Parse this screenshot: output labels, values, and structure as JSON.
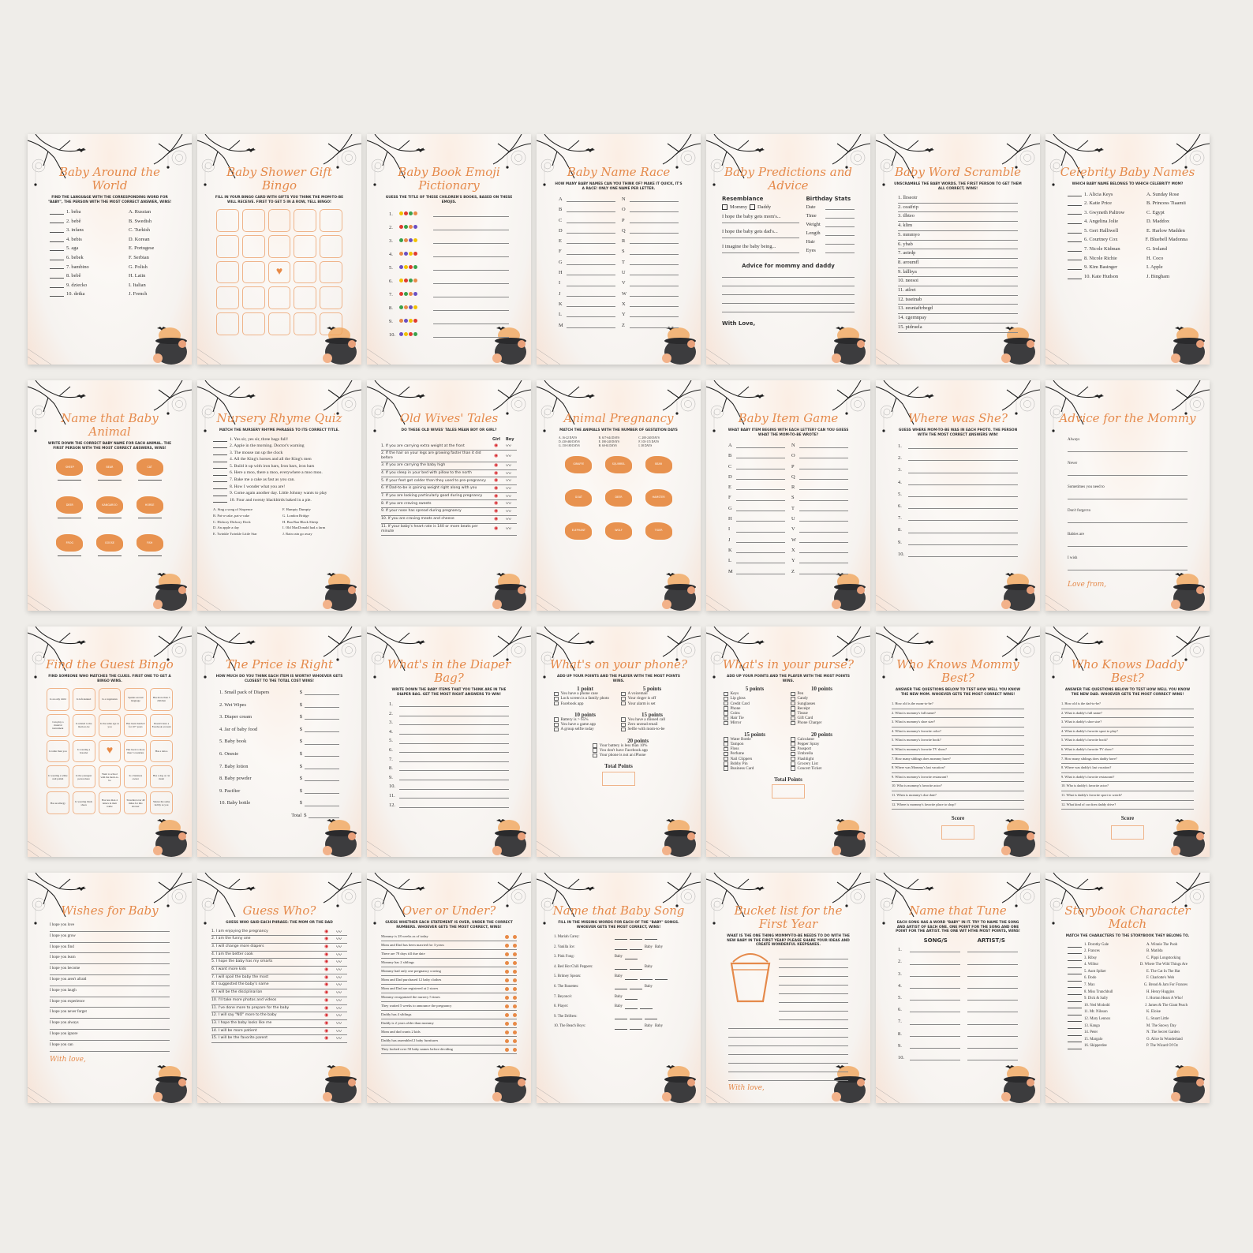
{
  "palette": {
    "accent": "#e58a4b",
    "background": "#efede9",
    "card": "#fbf8f5"
  },
  "cards": [
    {
      "type": "match",
      "title": "Baby Around the World",
      "instr": "Find the language with the corresponding word for \"baby\", the person with the most correct answer, wins!",
      "left": [
        "1. beba",
        "2. bebê",
        "3. infans",
        "4. bebis",
        "5. aga",
        "6. bebek",
        "7. bambino",
        "8. bebê",
        "9. dziecko",
        "10. detka"
      ],
      "right": [
        "A. Russian",
        "B. Swedish",
        "C. Turkish",
        "D. Korean",
        "E. Portugese",
        "F. Serbian",
        "G. Polish",
        "H. Latin",
        "I. Italian",
        "J. French"
      ]
    },
    {
      "type": "bingo",
      "title": "Baby Shower Gift Bingo",
      "instr": "Fill in your bingo card with gifts you think the mom-to-be will receive. First to get 5 in a row, yell bingo!",
      "cells": [
        "",
        "",
        "",
        "",
        "",
        "",
        "",
        "",
        "",
        "",
        "",
        "",
        "heart",
        "",
        "",
        "",
        "",
        "",
        "",
        "",
        "",
        "",
        "",
        "",
        ""
      ]
    },
    {
      "type": "emoji",
      "title": "Baby Book Emoji Pictionary",
      "instr": "Guess the title of these children's books, based on these emojis.",
      "items": [
        "1.",
        "2.",
        "3.",
        "4.",
        "5.",
        "6.",
        "7.",
        "8.",
        "9.",
        "10."
      ]
    },
    {
      "type": "alphabet",
      "title": "Baby Name Race",
      "instr": "How many baby names can you think of? Make it quick, it's a race! Only one name per letter.",
      "left": [
        "A",
        "B",
        "C",
        "D",
        "E",
        "F",
        "G",
        "H",
        "I",
        "J",
        "K",
        "L",
        "M"
      ],
      "right": [
        "N",
        "O",
        "P",
        "Q",
        "R",
        "S",
        "T",
        "U",
        "V",
        "W",
        "X",
        "Y",
        "Z"
      ]
    },
    {
      "type": "predictions",
      "title": "Baby Predictions and Advice",
      "resemblance": "Resemblance",
      "options": [
        "Mommy",
        "Daddy"
      ],
      "hopes": [
        "I hope the baby gets mom's...",
        "I hope the baby gets dad's...",
        "I imagine the baby being..."
      ],
      "stats_heading": "Birthday Stats",
      "stats": [
        "Date",
        "Time",
        "Weight",
        "Length",
        "Hair",
        "Eyes"
      ],
      "advice_heading": "Advice for mommy and daddy",
      "footer": "With Love,"
    },
    {
      "type": "lines",
      "title": "Baby Word Scramble",
      "instr": "Unscramble the baby words. The first person to get them all correct, wins!",
      "items": [
        "1. llrseotr",
        "2. ceaifrip",
        "3. tlbteo",
        "4. klim",
        "5. mmmyo",
        "6. ybab",
        "7. aeirdp",
        "8. aroumfl",
        "9. lallbya",
        "10. neesoi",
        "11. atlret",
        "12. tsseinab",
        "13. eesniaftrbegd",
        "14. cgernnpay",
        "15. pidruela"
      ]
    },
    {
      "type": "match",
      "title": "Celebrity Baby Names",
      "instr": "Which baby name belongs to which celebrity mom?",
      "left": [
        "1. Alicia Keys",
        "2. Katie Price",
        "3. Gwyneth Paltrow",
        "4. Angelina Jolie",
        "5. Geri Halliwell",
        "6. Courtney Cox",
        "7. Nicole Kidman",
        "8. Nicole Richie",
        "9. Kim Basinger",
        "10. Kate Hudson"
      ],
      "right": [
        "A. Sunday Rose",
        "B. Princess Tiaamii",
        "C. Egypt",
        "D. Maddox",
        "E. Harlow Madden",
        "F. Bluebell Madonna",
        "G. Ireland",
        "H. Coco",
        "I. Apple",
        "J. Bingham"
      ]
    },
    {
      "type": "animals",
      "title": "Name that Baby Animal",
      "instr": "Write down the correct baby name for each animal. The first person with the most correct answers, wins!",
      "animals": [
        "SHEEP",
        "BEAR",
        "CAT",
        "DEER",
        "KANGAROO",
        "HORSE",
        "FROG",
        "GOOSE",
        "FISH"
      ],
      "options": []
    },
    {
      "type": "rhyme",
      "title": "Nursery Rhyme Quiz",
      "instr": "Match the nursery rhyme phrases to its correct title.",
      "items": [
        "1. Yes sir, yes sir, three bags full!",
        "2. Apple in the morning. Doctor's warning",
        "3. The mouse ran up the clock",
        "4. All the King's horses and all the King's men",
        "5. Build it up with iron bars, Iron bars, iron bars",
        "6. Here a moo, there a moo, everywhere a moo moo.",
        "7. Bake me a cake as fast as you can.",
        "8. How I wonder what you are!",
        "9. Come again another day. Little Johnny wants to play",
        "10. Four and twenty blackbirds baked in a pie."
      ],
      "left": [
        "A. Sing a song of Sixpence",
        "B. Pat-a-cake, pat-a-cake",
        "C. Hickory Dickory Dock",
        "D. An apple a day",
        "E. Twinkle Twinkle Little Star"
      ],
      "right": [
        "F. Humpty Dumpty",
        "G. London Bridge",
        "H. Baa Baa Black Sheep",
        "I. Old MacDonald had a farm",
        "J. Rain rain go away"
      ]
    },
    {
      "type": "mf",
      "title": "Old Wives' Tales",
      "instr": "Do these old wives' tales mean boy or girl?",
      "headers": [
        "Girl",
        "Boy"
      ],
      "items": [
        "1. If you are carrying extra weight at the front",
        "2. If the hair on your legs are growing faster than it did before",
        "3. If you are carrying the baby high",
        "4. If you sleep in your bed with pillow to the north",
        "5. If your feet get colder than they used to pre-pregnancy",
        "6. If Dad-to-be is gaining weight right along with you",
        "7. If you are looking particularly good during pregnancy",
        "8. If you are craving sweets",
        "9. If your nose has spread during pregnancy",
        "10. If you are craving meats and cheese",
        "11. If your baby's heart rate is 140 or more beats per minute"
      ]
    },
    {
      "type": "animals",
      "title": "Animal Pregnancy",
      "instr": "Match the animals with the number of gestation days",
      "options": [
        "A. 16-22 DAYS",
        "B. 617-644 DAYS",
        "C. 200-240 DAYS",
        "D. 430-460 DAYS",
        "E. 180-240 DAYS",
        "F. 103-115 DAYS",
        "G. 150-180 DAYS",
        "H. 60-63 DAYS",
        "I. 38 DAYS"
      ],
      "animals": [
        "GIRAFFE",
        "SQUIRREL",
        "BEAR",
        "GOAT",
        "DEER",
        "HAMSTER",
        "ELEPHANT",
        "WOLF",
        "TIGER"
      ]
    },
    {
      "type": "alphabet",
      "title": "Baby Item Game",
      "instr": "What baby item begins with each letter? Can you guess what the mom-to-be wrote?",
      "left": [
        "A",
        "B",
        "C",
        "D",
        "E",
        "F",
        "G",
        "H",
        "I",
        "J",
        "K",
        "L",
        "M"
      ],
      "right": [
        "N",
        "O",
        "P",
        "Q",
        "R",
        "S",
        "T",
        "U",
        "V",
        "W",
        "X",
        "Y",
        "Z"
      ]
    },
    {
      "type": "numbered",
      "title": "Where was She?",
      "instr": "Guess where mom-to-be was in each photo. The person with the most correct answers win!",
      "items": [
        "1.",
        "2.",
        "3.",
        "4.",
        "5.",
        "6.",
        "7.",
        "8.",
        "9.",
        "10."
      ]
    },
    {
      "type": "prompts",
      "title": "Advice for the Mommy",
      "instr": "",
      "items": [
        "Always",
        "Never",
        "Sometimes you need to",
        "Don't forget to",
        "Babies are",
        "I wish"
      ],
      "footer": "Love from,"
    },
    {
      "type": "bingo",
      "title": "Find the Guest Bingo",
      "instr": "Find someone who matches the clues. First one to get a bingo wins.",
      "cells": [
        "Is an only child",
        "Is left-handed",
        "Is a vegetarian",
        "Speaks second language",
        "Has more than 3 children",
        "Can play a musical instrument",
        "Is related to the mom-to-be",
        "Is the same age as you",
        "Has been married for 10+ years",
        "Doesn't have a Facebook account",
        "Is taller than you",
        "Is wearing a bracelet",
        "heart",
        "Has been to more than 3 countries",
        "Has a tattoo",
        "Is wearing a white nail polish",
        "Is the youngest person here",
        "Went to school with the mom-to-be",
        "Is a business owner",
        "Has a dog or cat mom",
        "Has an allergy",
        "Is wearing black shoes",
        "Has less than 4 letters in their name",
        "Travelled over 40 miles for this shower",
        "Shares the same hobby as you"
      ]
    },
    {
      "type": "price",
      "title": "The Price is Right",
      "instr": "How much do you think each item is worth? Whoever gets closest to the total cost wins!",
      "items": [
        "1. Small pack of Diapers",
        "2. Wet Wipes",
        "3. Diaper cream",
        "4. Jar of baby food",
        "5. Baby book",
        "6. Onesie",
        "7. Baby lotion",
        "8. Baby powder",
        "9. Pacifier",
        "10. Baby bottle"
      ],
      "currency": "$",
      "total": "Total"
    },
    {
      "type": "numbered",
      "title": "What's in the Diaper Bag?",
      "instr": "Write down the baby items that you think are in the diaper bag. Get the most right answers to win!",
      "items": [
        "1.",
        "2.",
        "3.",
        "4.",
        "5.",
        "6.",
        "7.",
        "8.",
        "9.",
        "10.",
        "11.",
        "12."
      ]
    },
    {
      "type": "sections",
      "title": "What's on your phone?",
      "instr": "Add up your points and the player with the most points wins.",
      "groups": [
        {
          "heading": "1 point",
          "items": [
            "You have a phone case",
            "Lock screen is a family photo",
            "Facebook app"
          ]
        },
        {
          "heading": "5 points",
          "items": [
            "A voicemail",
            "Your ringer is off",
            "Your alarm is set"
          ]
        },
        {
          "heading": "10 points",
          "items": [
            "Battery is > 65%",
            "You have a game app",
            "A group selfie today"
          ]
        },
        {
          "heading": "15 points",
          "items": [
            "You have a missed call",
            "Zero unread email",
            "Selfie with mom-to-be"
          ]
        },
        {
          "heading": "20 points",
          "items": [
            "Your battery is less than 10%",
            "You don't have Facebook app",
            "Your phone is not an iPhone"
          ]
        }
      ],
      "footer": "Total Points"
    },
    {
      "type": "sections",
      "title": "What's in your purse?",
      "instr": "Add up your points and the player with the most points wins.",
      "groups": [
        {
          "heading": "5 points",
          "items": [
            "Keys",
            "Lip gloss",
            "Credit Card",
            "Phone",
            "Coins",
            "Hair Tie",
            "Mirror"
          ]
        },
        {
          "heading": "10 points",
          "items": [
            "Pen",
            "Candy",
            "Sunglasses",
            "Receipt",
            "Tissue",
            "Gift Card",
            "Phone Charger"
          ]
        },
        {
          "heading": "15 points",
          "items": [
            "Water Bottle",
            "Tampon",
            "Floss",
            "Perfume",
            "Nail Clippers",
            "Bobby Pin",
            "Business Card"
          ]
        },
        {
          "heading": "20 points",
          "items": [
            "Calculator",
            "Pepper Spray",
            "Passport",
            "Umbrella",
            "Flashlight",
            "Grocery List",
            "Concert Ticket"
          ]
        }
      ],
      "footer": "Total Points"
    },
    {
      "type": "questions",
      "title": "Who Knows Mommy Best?",
      "instr": "Answer the questions below to test how well you know the new mom. Whoever gets the most correct wins!",
      "items": [
        "1. How old is the mom-to-be?",
        "2. What is mommy's full name?",
        "3. What is mommy's shoe size?",
        "4. What is mommy's favorite color?",
        "5. What is mommy's favorite book?",
        "6. What is mommy's favorite TV show?",
        "7. How many siblings does mommy have?",
        "8. Where was Mommy's last vacation?",
        "9. What is mommy's favorite restaurant?",
        "10. Who is mommy's favorite actor?",
        "11. When is mommy's due date?",
        "12. Where is mommy's favorite place to shop?"
      ],
      "footer": "Score"
    },
    {
      "type": "questions",
      "title": "Who Knows Daddy Best?",
      "instr": "Answer the questions below to test how well you know the new dad. Whoever gets the most correct wins!",
      "items": [
        "1. How old is the dad-to-be?",
        "2. What is daddy's full name?",
        "3. What is daddy's shoe size?",
        "4. What is daddy's favorite sport to play?",
        "5. What is daddy's favorite book?",
        "6. What is daddy's favorite TV show?",
        "7. How many siblings does daddy have?",
        "8. Where was daddy's last vacation?",
        "9. What is daddy's favorite restaurant?",
        "10. Who is daddy's favorite actor?",
        "11. What is daddy's favorite sport to watch?",
        "12. What kind of car does daddy drive?"
      ],
      "footer": "Score"
    },
    {
      "type": "prompts",
      "title": "Wishes for Baby",
      "instr": "",
      "items": [
        "I hope you love",
        "I hope you grow",
        "I hope you find",
        "I hope you learn",
        "I hope you become",
        "I hope you aren't afraid",
        "I hope you laugh",
        "I hope you experience",
        "I hope you never forget",
        "I hope you always",
        "I hope you ignore",
        "I hope you can"
      ],
      "footer": "With love,"
    },
    {
      "type": "mf",
      "title": "Guess Who?",
      "instr": "Guess who said each phrase: the mom or the dad",
      "headers": [],
      "items": [
        "1. I am enjoying the pregnancy",
        "2. I am the funny one",
        "3. I will change more diapers",
        "4. I am the better cook",
        "5. I hope the baby has my smarts",
        "6. I want more kids",
        "7. I will spoil the baby the most",
        "8. I suggested the baby's name",
        "9. I will be the disciplinarian",
        "10. I'll take more photos and videos",
        "11. I've done more to prepare for the baby",
        "12. I will say \"NO\" more to the baby",
        "13. I hope the baby looks like me",
        "14. I will be more patient",
        "15. I will be the favorite parent"
      ]
    },
    {
      "type": "overunder",
      "title": "Over or Under?",
      "instr": "Guess whether each statement is over, under the correct numbers. Whoever gets the most correct, wins!",
      "items": [
        "Mommy is 28 weeks as of today",
        "Mom and Dad has been married for 3 years",
        "There are 78 days till due date",
        "Mommy has 2 siblings",
        "Mommy had only one pregnancy craving",
        "Mom and Dad purchased 12 baby clothes",
        "Mom and Dad are registered at 2 stores",
        "Mommy reorganized the nursery 5 times",
        "They waited 5 weeks to announce the pregnancy",
        "Daddy has 4 siblings",
        "Daddy is 2 years older than mommy",
        "Mom and dad wants 2 kids",
        "Daddy has assembled 2 baby furnitures",
        "They looked over 50 baby names before deciding"
      ]
    },
    {
      "type": "song",
      "title": "Name that Baby Song",
      "instr": "Fill in the missing words for each of the \"baby\" songs. Whoever gets the most correct, wins!",
      "items": [
        {
          "artist": "1. Mariah Carey:",
          "parts": [
            "_",
            "_",
            "_"
          ]
        },
        {
          "artist": "2. Vanilla Ice:",
          "parts": [
            "_",
            "_",
            "Baby",
            "Baby"
          ]
        },
        {
          "artist": "3. Pink Fong:",
          "parts": [
            "Baby",
            "_"
          ]
        },
        {
          "artist": "4. Red Hot Chili Peppers:",
          "parts": [
            "_",
            "_",
            "Baby"
          ]
        },
        {
          "artist": "5. Britney Spears:",
          "parts": [
            "Baby",
            "_",
            "_",
            "_"
          ]
        },
        {
          "artist": "6. The Ronettes:",
          "parts": [
            "_",
            "_",
            "Baby"
          ]
        },
        {
          "artist": "7. Beyoncé:",
          "parts": [
            "Baby",
            "_"
          ]
        },
        {
          "artist": "8. Player:",
          "parts": [
            "Baby",
            "_",
            "_"
          ]
        },
        {
          "artist": "9. The Drifters:",
          "parts": [
            "_",
            "_",
            "_"
          ]
        },
        {
          "artist": "10. The Beach Boys:",
          "parts": [
            "_",
            "_",
            "Baby",
            "Baby"
          ]
        }
      ]
    },
    {
      "type": "bucket",
      "title": "Bucket list for the First Year",
      "instr": "What is the one thing mommy-to-be needs to do with the new baby in the first year? Please share your ideas and create wonderful keepsakes.",
      "footer": "With love,"
    },
    {
      "type": "tune",
      "title": "Name that Tune",
      "instr": "Each song has a word \"baby\" in it. Try to name the song and artist of each one. One point for the song and one point for the artist. The one wit hthe most points, wins!",
      "headers": [
        "SONG/S",
        "ARTIST/S"
      ],
      "items": [
        "1.",
        "2.",
        "3.",
        "4.",
        "5.",
        "6.",
        "7.",
        "8.",
        "9.",
        "10."
      ]
    },
    {
      "type": "match",
      "title": "Storybook Character Match",
      "instr": "Match the characters to the storybook they belong to.",
      "left": [
        "1. Dorothy Gale",
        "2. Frances",
        "3. Ribsy",
        "4. Wilbur",
        "5. Aunt Spiker",
        "6. Dodo",
        "7. Max",
        "8. Miss Trunchbull",
        "9. Dick & Sally",
        "10. Ned Mcdodd",
        "11. Mr. Nilsson",
        "12. Mary Lennox",
        "13. Kanga",
        "14. Peter",
        "15. Margalo",
        "16. Skipperdee"
      ],
      "right": [
        "A. Winnie The Pooh",
        "B. Matilda",
        "C. Pippi Longstocking",
        "D. Where The Wild Things Are",
        "E. The Cat In The Hat",
        "F. Charlotte's Web",
        "G. Bread & Jam For Frances",
        "H. Henry Huggins",
        "I. Horton Hears A Who!",
        "J. James & The Giant Peach",
        "K. Eloise",
        "L. Stuart Little",
        "M. The Snowy Day",
        "N. The Secret Garden",
        "O. Alice In Wonderland",
        "P. The Wizard Of Oz"
      ]
    }
  ]
}
